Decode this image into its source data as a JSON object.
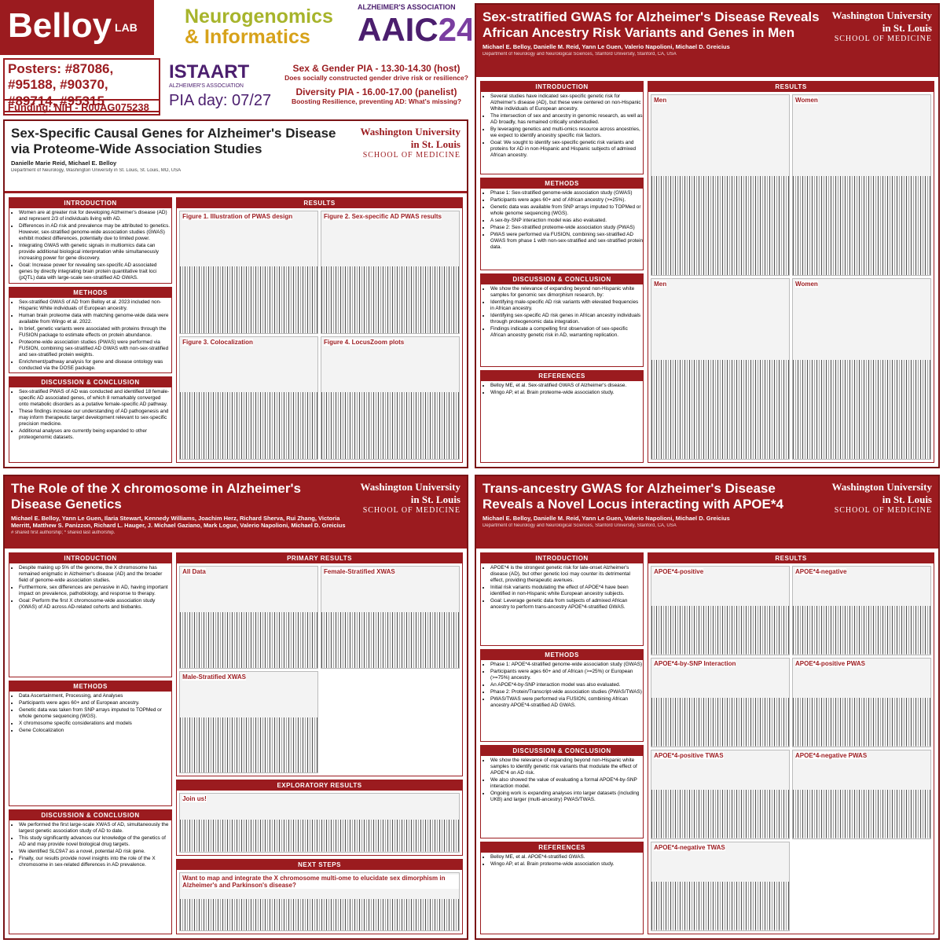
{
  "header": {
    "lab": "Belloy",
    "lab_suffix": "LAB",
    "neuro_1": "Neurogenomics",
    "neuro_2": "& Informatics",
    "alz": "ALZHEIMER'S ASSOCIATION",
    "aaic": "AAIC",
    "aaic_year": "24",
    "posters": "Posters: #87086, #95188, #90370, #89714, #95315",
    "funding": "Funding: NIH - R00AG075238",
    "istaart": "ISTAART",
    "istaart_sub": "ALZHEIMER'S ASSOCIATION",
    "pia_day": "PIA day: 07/27",
    "sex_gender": "Sex & Gender PIA - 13.30-14.30 (host)",
    "sex_gender_q": "Does socially constructed gender drive risk or resilience?",
    "diversity": "Diversity PIA - 16.00-17.00 (panelist)",
    "diversity_q": "Boosting Resilience, preventing AD: What's missing?"
  },
  "posters": [
    {
      "title": "Sex-Specific Causal Genes for Alzheimer's Disease via Proteome-Wide Association Studies",
      "authors": "Danielle Marie Reid, Michael E. Belloy",
      "affiliation": "Department of Neurology, Washington University in St. Louis, St. Louis, MO, USA",
      "university": "Washington University in St. Louis",
      "school": "SCHOOL OF MEDICINE",
      "sections": [
        {
          "heading": "INTRODUCTION",
          "bullets": [
            "Women are at greater risk for developing Alzheimer's disease (AD) and represent 2/3 of individuals living with AD.",
            "Differences in AD risk and prevalence may be attributed to genetics. However, sex-stratified genome-wide association studies (GWAS) exhibit modest differences, potentially due to limited power.",
            "Integrating GWAS with genetic signals in multiomics data can provide additional biological interpretation while simultaneously increasing power for gene discovery.",
            "Goal: Increase power for revealing sex-specific AD associated genes by directly integrating brain protein quantitative trait loci (pQTL) data with large-scale sex-stratified AD GWAS."
          ]
        },
        {
          "heading": "METHODS",
          "bullets": [
            "Sex-stratified GWAS of AD from Belloy et al. 2023 included non-Hispanic White individuals of European ancestry.",
            "Human brain proteome data with matching genome-wide data were available from Wingo et al. 2022.",
            "In brief, genetic variants were associated with proteins through the FUSION package to estimate effects on protein abundance.",
            "Proteome-wide association studies (PWAS) were performed via FUSION, combining sex-stratified AD GWAS with non-sex-stratified and sex-stratified protein weights.",
            "Enrichment/pathway analysis for gene and disease ontology was conducted via the DOSE package."
          ]
        },
        {
          "heading": "DISCUSSION & CONCLUSION",
          "bullets": [
            "Sex-stratified PWAS of AD was conducted and identified 18 female-specific AD associated genes, of which 8 remarkably converged onto metabolic disorders as a putative female-specific AD pathway.",
            "These findings increase our understanding of AD pathogenesis and may inform therapeutic target development relevant to sex-specific precision medicine.",
            "Additional analyses are currently being expanded to other proteogenomic datasets."
          ]
        }
      ],
      "results": [
        {
          "heading": "RESULTS",
          "labels": [
            "Figure 1. Illustration of PWAS design",
            "Figure 2. Sex-specific AD PWAS results",
            "Figure 3. Colocalization",
            "Figure 4. LocusZoom plots"
          ]
        }
      ]
    },
    {
      "title": "Sex-stratified GWAS for Alzheimer's Disease Reveals African Ancestry Risk Variants and Genes in Men",
      "authors": "Michael E. Belloy, Danielle M. Reid, Yann Le Guen, Valerio Napolioni, Michael D. Greicius",
      "affiliation": "Department of Neurology and Neurological Sciences, Stanford University, Stanford, CA, USA",
      "university": "Washington University in St. Louis",
      "school": "SCHOOL OF MEDICINE",
      "sections": [
        {
          "heading": "INTRODUCTION",
          "bullets": [
            "Several studies have indicated sex-specific genetic risk for Alzheimer's disease (AD), but these were centered on non-Hispanic White individuals of European ancestry.",
            "The intersection of sex and ancestry in genomic research, as well as AD broadly, has remained critically understudied.",
            "By leveraging genetics and multi-omics resource across ancestries, we expect to identify ancestry specific risk factors.",
            "Goal: We sought to identify sex-specific genetic risk variants and proteins for AD in non-Hispanic and Hispanic subjects of admixed African ancestry."
          ]
        },
        {
          "heading": "METHODS",
          "bullets": [
            "Phase 1: Sex-stratified genome-wide association study (GWAS)",
            "Participants were ages 60+ and of African ancestry (>=25%).",
            "Genetic data was available from SNP arrays imputed to TOPMed or whole genome sequencing (WGS).",
            "A sex-by-SNP interaction model was also evaluated.",
            "Phase 2: Sex-stratified proteome-wide association study (PWAS)",
            "PWAS were performed via FUSION, combining sex-stratified AD GWAS from phase 1 with non-sex-stratified and sex-stratified protein data."
          ]
        },
        {
          "heading": "DISCUSSION & CONCLUSION",
          "bullets": [
            "We show the relevance of expanding beyond non-Hispanic white samples for genomic sex dimorphism research, by:",
            "Identifying male-specific AD risk variants with elevated frequencies in African ancestry.",
            "Identifying sex-specific AD risk genes in African ancestry individuals through proteogenomic data integration.",
            "Findings indicate a compelling first observation of sex-specific African ancestry genetic risk in AD, warranting replication."
          ]
        },
        {
          "heading": "REFERENCES",
          "bullets": [
            "Belloy ME, et al. Sex-stratified GWAS of Alzheimer's disease.",
            "Wingo AP, et al. Brain proteome-wide association study."
          ]
        }
      ],
      "results": [
        {
          "heading": "RESULTS",
          "labels": [
            "Men",
            "Women",
            "Men",
            "Women"
          ]
        }
      ]
    },
    {
      "title": "The Role of the X chromosome in Alzheimer's Disease Genetics",
      "authors": "Michael E. Belloy, Yann Le Guen, Ilaria Stewart, Kennedy Williams, Joachim Herz, Richard Sherva, Rui Zhang, Victoria Merritt, Matthew S. Panizzon, Richard L. Hauger, J. Michael Gaziano, Mark Logue, Valerio Napolioni, Michael D. Greicius",
      "affiliation": "# shared first authorship; * shared last authorship.",
      "university": "Washington University in St. Louis",
      "school": "SCHOOL OF MEDICINE",
      "sections": [
        {
          "heading": "INTRODUCTION",
          "bullets": [
            "Despite making up 5% of the genome, the X chromosome has remained enigmatic in Alzheimer's disease (AD) and the broader field of genome-wide association studies.",
            "Furthermore, sex differences are pervasive in AD, having important impact on prevalence, pathobiology, and response to therapy.",
            "Goal: Perform the first X chromosome-wide association study (XWAS) of AD across AD-related cohorts and biobanks."
          ]
        },
        {
          "heading": "METHODS",
          "bullets": [
            "Data Ascertainment, Processing, and Analyses",
            "Participants were ages 60+ and of European ancestry.",
            "Genetic data was taken from SNP arrays imputed to TOPMed or whole genome sequencing (WGS).",
            "X chromosome specific considerations and models",
            "Gene Colocalization"
          ]
        },
        {
          "heading": "DISCUSSION & CONCLUSION",
          "bullets": [
            "We performed the first large-scale XWAS of AD, simultaneously the largest genetic association study of AD to date.",
            "This study significantly advances our knowledge of the genetics of AD and may provide novel biological drug targets.",
            "We identified SLC9A7 as a novel, potential AD risk gene.",
            "Finally, our results provide novel insights into the role of the X chromosome in sex-related differences in AD prevalence."
          ]
        }
      ],
      "results": [
        {
          "heading": "PRIMARY RESULTS",
          "labels": [
            "All Data",
            "Female-Stratified XWAS",
            "Male-Stratified XWAS"
          ]
        },
        {
          "heading": "EXPLORATORY RESULTS",
          "labels": [
            "Join us!"
          ]
        },
        {
          "heading": "NEXT STEPS",
          "labels": [
            "Want to map and integrate the X chromosome multi-ome to elucidate sex dimorphism in Alzheimer's and Parkinson's disease?"
          ]
        }
      ]
    },
    {
      "title": "Trans-ancestry GWAS for Alzheimer's Disease Reveals a Novel Locus interacting with APOE*4",
      "authors": "Michael E. Belloy, Danielle M. Reid, Yann Le Guen, Valerio Napolioni, Michael D. Greicius",
      "affiliation": "Department of Neurology and Neurological Sciences, Stanford University, Stanford, CA, USA",
      "university": "Washington University in St. Louis",
      "school": "SCHOOL OF MEDICINE",
      "sections": [
        {
          "heading": "INTRODUCTION",
          "bullets": [
            "APOE*4 is the strongest genetic risk for late-onset Alzheimer's disease (AD), but other genetic loci may counter its detrimental effect, providing therapeutic avenues.",
            "Initial risk variants modulating the effect of APOE*4 have been identified in non-Hispanic white European ancestry subjects.",
            "Goal: Leverage genetic data from subjects of admixed African ancestry to perform trans-ancestry APOE*4-stratified GWAS."
          ]
        },
        {
          "heading": "METHODS",
          "bullets": [
            "Phase 1: APOE*4-stratified genome-wide association study (GWAS)",
            "Participants were ages 60+ and of African (>=25%) or European (>=75%) ancestry.",
            "An APOE*4-by-SNP interaction model was also evaluated.",
            "Phase 2: Protein/Transcript-wide association studies (PWAS/TWAS)",
            "PWAS/TWAS were performed via FUSION, combining African ancestry APOE*4-stratified AD GWAS."
          ]
        },
        {
          "heading": "DISCUSSION & CONCLUSION",
          "bullets": [
            "We show the relevance of expanding beyond non-Hispanic white samples to identify genetic risk variants that modulate the effect of APOE*4 on AD risk.",
            "We also showed the value of evaluating a formal APOE*4-by-SNP interaction model.",
            "Ongoing work is expanding analyses into larger datasets (including UKB) and larger (multi-ancestry) PWAS/TWAS."
          ]
        },
        {
          "heading": "REFERENCES",
          "bullets": [
            "Belloy ME, et al. APOE*4-stratified GWAS.",
            "Wingo AP, et al. Brain proteome-wide association study."
          ]
        }
      ],
      "results": [
        {
          "heading": "RESULTS",
          "labels": [
            "APOE*4-positive",
            "APOE*4-negative",
            "APOE*4-by-SNP Interaction",
            "APOE*4-positive PWAS",
            "APOE*4-positive TWAS",
            "APOE*4-negative PWAS",
            "APOE*4-negative TWAS"
          ]
        }
      ]
    }
  ]
}
